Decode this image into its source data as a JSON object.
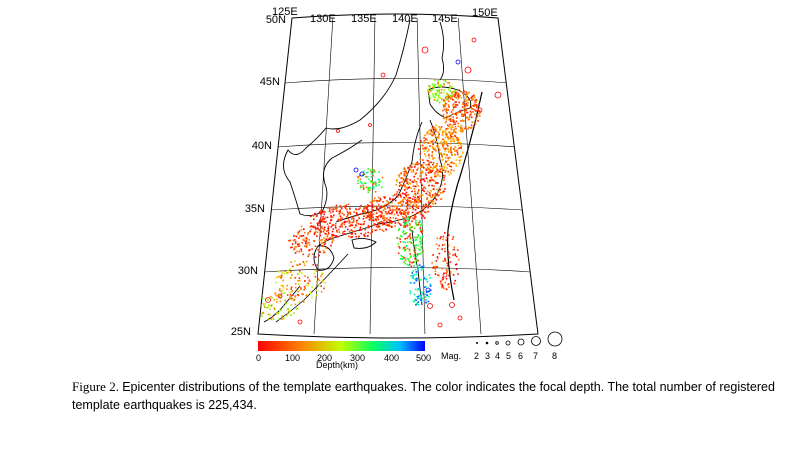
{
  "map": {
    "lon_labels": [
      "125E",
      "130E",
      "135E",
      "140E",
      "145E",
      "150E"
    ],
    "lat_labels": [
      "50N",
      "45N",
      "40N",
      "35N",
      "30N",
      "25N"
    ],
    "colors": {
      "shallow": "#ff0000",
      "mid": "#ffa500",
      "intermediate": "#66ff00",
      "deep": "#00cc88",
      "deepest": "#0000ff",
      "grid": "#000000",
      "coast": "#000000"
    }
  },
  "depth_scale": {
    "ticks": [
      "0",
      "100",
      "200",
      "300",
      "400",
      "500"
    ],
    "title": "Depth(km)"
  },
  "magnitude_scale": {
    "title": "Mag.",
    "values": [
      "2",
      "3",
      "4",
      "5",
      "6",
      "7",
      "8"
    ]
  },
  "caption": {
    "label": "Figure 2.",
    "text": "Epicenter distributions of the template earthquakes. The color indicates the focal depth. The total number of registered template earthquakes is 225,434."
  }
}
